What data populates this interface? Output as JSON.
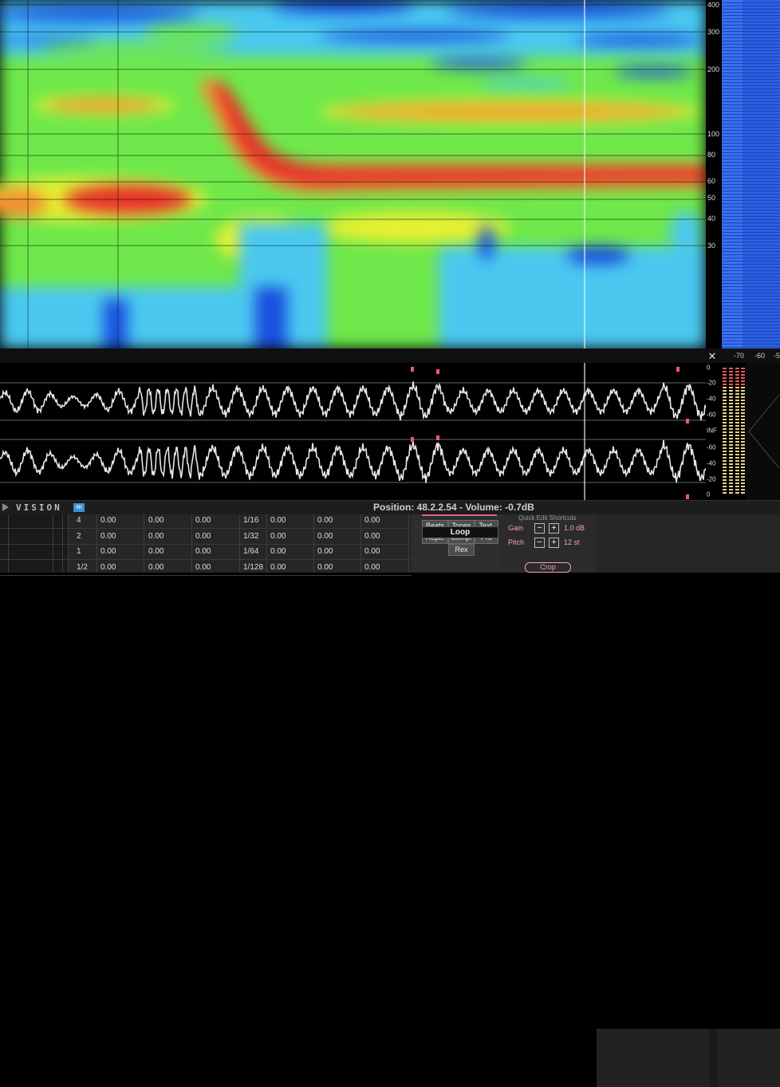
{
  "colors": {
    "spec_red": "#e8302a",
    "spec_orange": "#f59030",
    "spec_yellow": "#e6f032",
    "spec_green": "#6ee84a",
    "spec_cyan": "#4ac8f0",
    "spec_blue": "#1a4fe0",
    "waveform": "#e6e6e6",
    "accent_pink": "#f0a0c4",
    "meter_blue": "#2a5fe0"
  },
  "spectrogram": {
    "freq_ticks": [
      {
        "label": "400",
        "hz": 400
      },
      {
        "label": "300",
        "hz": 300
      },
      {
        "label": "200",
        "hz": 200
      },
      {
        "label": "100",
        "hz": 100
      },
      {
        "label": "80",
        "hz": 80
      },
      {
        "label": "60",
        "hz": 60
      },
      {
        "label": "50",
        "hz": 50
      },
      {
        "label": "40",
        "hz": 40
      },
      {
        "label": "30",
        "hz": 30
      }
    ]
  },
  "meter_scale": {
    "labels": [
      "-70",
      "-60",
      "-5"
    ]
  },
  "waveform": {
    "db_ticks_top": [
      "0",
      "-20",
      "-40",
      "-60"
    ],
    "center_label": "INF",
    "db_ticks_bottom": [
      "-60",
      "-40",
      "-20",
      "0"
    ]
  },
  "statusbar": {
    "logo": "VISION",
    "badge": "4K",
    "position": "Position: 48.2.2.54 - Volume: -0.7dB"
  },
  "grid": {
    "rows": [
      {
        "label": "4",
        "v1": "0.00",
        "v2": "0.00",
        "v3": "0.00",
        "div": "1/16",
        "v4": "0.00",
        "v5": "0.00",
        "v6": "0.00"
      },
      {
        "label": "2",
        "v1": "0.00",
        "v2": "0.00",
        "v3": "0.00",
        "div": "1/32",
        "v4": "0.00",
        "v5": "0.00",
        "v6": "0.00"
      },
      {
        "label": "1",
        "v1": "0.00",
        "v2": "0.00",
        "v3": "0.00",
        "div": "1/64",
        "v4": "0.00",
        "v5": "0.00",
        "v6": "0.00"
      },
      {
        "label": "1/2",
        "v1": "0.00",
        "v2": "0.00",
        "v3": "0.00",
        "div": "1/128",
        "v4": "0.00",
        "v5": "0.00",
        "v6": "0.00"
      }
    ]
  },
  "tools": {
    "beats": "Beats",
    "tones": "Tones",
    "text": "Text.",
    "repit": "Repit.",
    "comp": "Comp.",
    "pro": "Pro",
    "rex": "Rex",
    "loop": "Loop"
  },
  "quick_edit": {
    "title": "Quick Edit Shortcuts",
    "gain_label": "Gain",
    "gain_minus": "−",
    "gain_plus": "+",
    "gain_value": "1.0 dB",
    "pitch_label": "Pitch",
    "pitch_minus": "−",
    "pitch_plus": "+",
    "pitch_value": "12 st",
    "crop": "Crop"
  }
}
